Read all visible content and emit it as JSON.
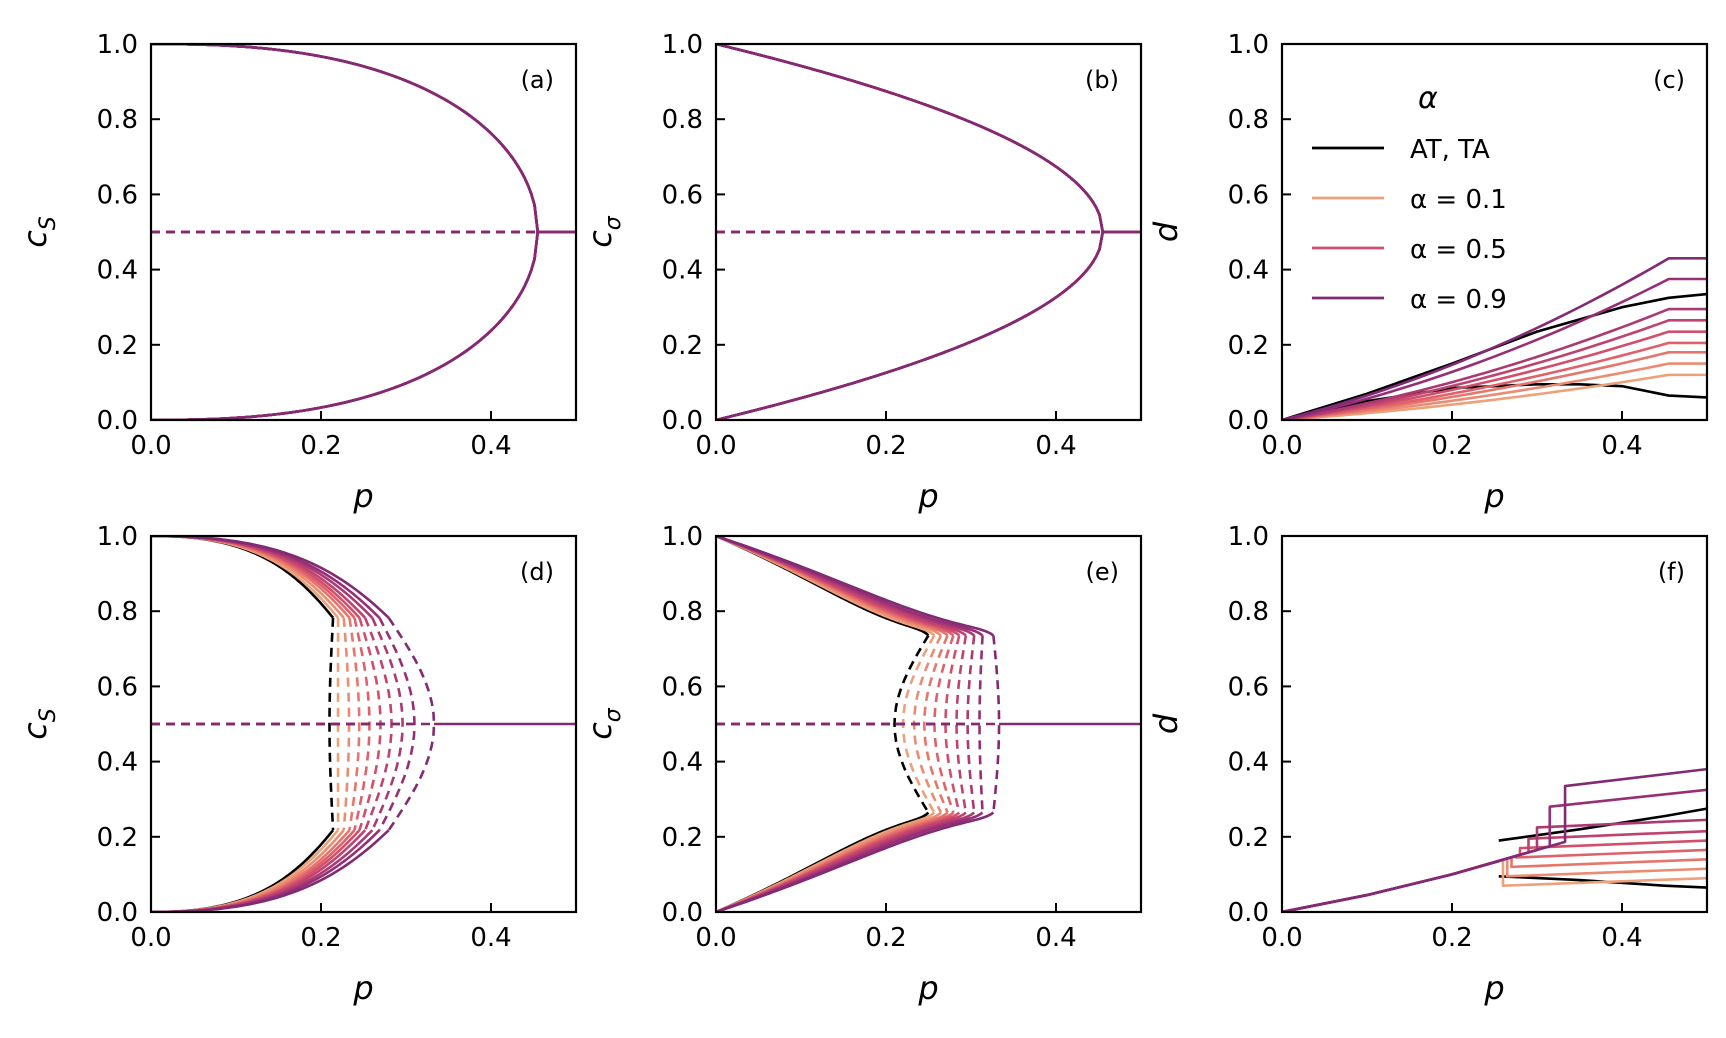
{
  "colors": {
    "ref": "#000000",
    "alpha_palette": [
      "#eda17a",
      "#ea8c72",
      "#e5766d",
      "#de616b",
      "#d14f6c",
      "#bf436f",
      "#ab3a72",
      "#962f75",
      "#822a74"
    ]
  },
  "legend": {
    "title": "α",
    "entries": [
      {
        "label": "AT, TA",
        "color": "#000000"
      },
      {
        "label": "α = 0.1",
        "color": "#eda17a"
      },
      {
        "label": "α = 0.5",
        "color": "#d14f6c"
      },
      {
        "label": "α = 0.9",
        "color": "#822a74"
      }
    ]
  },
  "chart_data": [
    {
      "id": "a",
      "type": "line",
      "label": "(a)",
      "xlabel": "p",
      "ylabel": "c_S",
      "xlim": [
        0,
        0.5
      ],
      "ylim": [
        0,
        1
      ],
      "xticks": [
        "0.0",
        "0.2",
        "0.4"
      ],
      "yticks": [
        "0.0",
        "0.2",
        "0.4",
        "0.6",
        "0.8",
        "1.0"
      ],
      "pc": 0.455,
      "shape": 2.5,
      "stable_x_end": 0.455,
      "unstable_x_start": 0,
      "unstable_value": 0.5,
      "variant": "uniform"
    },
    {
      "id": "b",
      "type": "line",
      "label": "(b)",
      "xlabel": "p",
      "ylabel": "c_σ",
      "xlim": [
        0,
        0.5
      ],
      "ylim": [
        0,
        1
      ],
      "xticks": [
        "0.0",
        "0.2",
        "0.4"
      ],
      "yticks": [
        "0.0",
        "0.2",
        "0.4",
        "0.6",
        "0.8",
        "1.0"
      ],
      "pc": 0.455,
      "shape": 1.1,
      "unstable_value": 0.5,
      "variant": "uniform"
    },
    {
      "id": "c",
      "type": "line",
      "label": "(c)",
      "xlabel": "p",
      "ylabel": "d",
      "xlim": [
        0,
        0.5
      ],
      "ylim": [
        0,
        1
      ],
      "xticks": [
        "0.0",
        "0.2",
        "0.4"
      ],
      "yticks": [
        "0.0",
        "0.2",
        "0.4",
        "0.6",
        "0.8",
        "1.0"
      ],
      "x_break": 0.455,
      "ref_upper": [
        [
          0,
          0
        ],
        [
          0.1,
          0.07
        ],
        [
          0.2,
          0.15
        ],
        [
          0.3,
          0.235
        ],
        [
          0.4,
          0.3
        ],
        [
          0.455,
          0.325
        ],
        [
          0.5,
          0.335
        ]
      ],
      "ref_lower": [
        [
          0,
          0
        ],
        [
          0.1,
          0.05
        ],
        [
          0.2,
          0.085
        ],
        [
          0.3,
          0.095
        ],
        [
          0.35,
          0.095
        ],
        [
          0.4,
          0.09
        ],
        [
          0.455,
          0.065
        ],
        [
          0.5,
          0.06
        ]
      ],
      "alpha_end_values": [
        0.12,
        0.15,
        0.18,
        0.205,
        0.235,
        0.265,
        0.295,
        0.375,
        0.43
      ],
      "alpha_break_values": [
        0.12,
        0.15,
        0.18,
        0.205,
        0.235,
        0.265,
        0.295,
        0.375,
        0.43
      ]
    },
    {
      "id": "d",
      "type": "line",
      "label": "(d)",
      "xlabel": "p",
      "ylabel": "c_S",
      "xlim": [
        0,
        0.5
      ],
      "ylim": [
        0,
        1
      ],
      "xticks": [
        "0.0",
        "0.2",
        "0.4"
      ],
      "yticks": [
        "0.0",
        "0.2",
        "0.4",
        "0.6",
        "0.8",
        "1.0"
      ],
      "pc_ref": 0.255,
      "pc_alpha": [
        0.262,
        0.27,
        0.278,
        0.285,
        0.292,
        0.3,
        0.31,
        0.32,
        0.333
      ],
      "ref_spinodal_min": 0.21,
      "spinodal_min_alpha": [
        0.22,
        0.233,
        0.245,
        0.257,
        0.27,
        0.283,
        0.296,
        0.31,
        0.333
      ],
      "shape": 2.2,
      "unstable_value": 0.5,
      "variant": "first_order"
    },
    {
      "id": "e",
      "type": "line",
      "label": "(e)",
      "xlabel": "p",
      "ylabel": "c_σ",
      "xlim": [
        0,
        0.5
      ],
      "ylim": [
        0,
        1
      ],
      "xticks": [
        "0.0",
        "0.2",
        "0.4"
      ],
      "yticks": [
        "0.0",
        "0.2",
        "0.4",
        "0.6",
        "0.8",
        "1.0"
      ],
      "pc_ref": 0.255,
      "pc_alpha": [
        0.262,
        0.27,
        0.278,
        0.285,
        0.292,
        0.3,
        0.31,
        0.32,
        0.333
      ],
      "ref_spinodal_min": 0.21,
      "spinodal_min_alpha": [
        0.22,
        0.233,
        0.245,
        0.257,
        0.27,
        0.283,
        0.296,
        0.31,
        0.333
      ],
      "shape": 1.0,
      "unstable_value": 0.5,
      "variant": "first_order"
    },
    {
      "id": "f",
      "type": "line",
      "label": "(f)",
      "xlabel": "p",
      "ylabel": "d",
      "xlim": [
        0,
        0.5
      ],
      "ylim": [
        0,
        1
      ],
      "xticks": [
        "0.0",
        "0.2",
        "0.4"
      ],
      "yticks": [
        "0.0",
        "0.2",
        "0.4",
        "0.6",
        "0.8",
        "1.0"
      ],
      "x_jump": 0.255,
      "ref_upper": [
        [
          0.255,
          0.19
        ],
        [
          0.35,
          0.22
        ],
        [
          0.45,
          0.255
        ],
        [
          0.5,
          0.275
        ]
      ],
      "ref_lower": [
        [
          0.255,
          0.095
        ],
        [
          0.35,
          0.085
        ],
        [
          0.45,
          0.07
        ],
        [
          0.5,
          0.065
        ]
      ],
      "ref_shared": [
        [
          0,
          0
        ],
        [
          0.1,
          0.045
        ],
        [
          0.2,
          0.1
        ],
        [
          0.255,
          0.135
        ]
      ],
      "alpha_end_values": [
        0.09,
        0.115,
        0.14,
        0.165,
        0.19,
        0.215,
        0.245,
        0.325,
        0.38
      ],
      "alpha_jump_x": [
        0.26,
        0.265,
        0.27,
        0.275,
        0.28,
        0.29,
        0.3,
        0.315,
        0.333
      ]
    }
  ]
}
